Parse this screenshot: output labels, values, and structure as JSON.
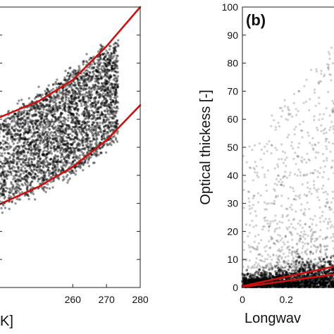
{
  "chart_data": [
    {
      "panel_label": "",
      "type": "scatter",
      "title": "",
      "xlabel": "",
      "ylabel": "",
      "xlabel_fragment": "K]",
      "x_ticks": [
        "260",
        "270",
        "280"
      ],
      "y_ticks": [],
      "xlim": [
        238,
        280
      ],
      "ylim": [
        0,
        100
      ],
      "grid": false,
      "point_color": "#000000",
      "fit_color": "#cc1111",
      "point_cloud": {
        "x_range": [
          238,
          273.5
        ],
        "upper_edge": [
          [
            238,
            60
          ],
          [
            250,
            68
          ],
          [
            260,
            77
          ],
          [
            268,
            84
          ],
          [
            273,
            87.5
          ]
        ],
        "lower_edge": [
          [
            238,
            29
          ],
          [
            250,
            35
          ],
          [
            260,
            41
          ],
          [
            268,
            48
          ],
          [
            273,
            54
          ]
        ]
      },
      "series": [
        {
          "values": [
            [
              238,
              60.5
            ],
            [
              250,
              66.5
            ],
            [
              260,
              74
            ],
            [
              270,
              86
            ],
            [
              280,
              100
            ]
          ]
        },
        {
          "values": [
            [
              238,
              29.5
            ],
            [
              250,
              36
            ],
            [
              260,
              43
            ],
            [
              270,
              52.5
            ],
            [
              280,
              65
            ]
          ]
        }
      ]
    },
    {
      "panel_label": "(b)",
      "type": "scatter",
      "title": "",
      "xlabel": "Longwav",
      "ylabel": "Optical thickess [-]",
      "x_ticks": [
        "0",
        "0.2"
      ],
      "y_ticks": [
        "0",
        "10",
        "20",
        "30",
        "40",
        "50",
        "60",
        "70",
        "80",
        "90",
        "100"
      ],
      "xlim": [
        0,
        0.45
      ],
      "ylim": [
        0,
        100
      ],
      "grid": false,
      "point_color": "#000000",
      "fit_color": "#cc1111",
      "point_cloud": {
        "dense_band": [
          [
            0,
            0
          ],
          [
            0.45,
            7
          ]
        ],
        "sparse_region": [
          [
            0,
            7
          ],
          [
            0.45,
            100
          ]
        ]
      },
      "series": [
        {
          "values": [
            [
              0,
              0.2
            ],
            [
              0.45,
              5
            ]
          ]
        },
        {
          "values": [
            [
              0,
              0.5
            ],
            [
              0.45,
              8
            ]
          ]
        }
      ]
    }
  ]
}
